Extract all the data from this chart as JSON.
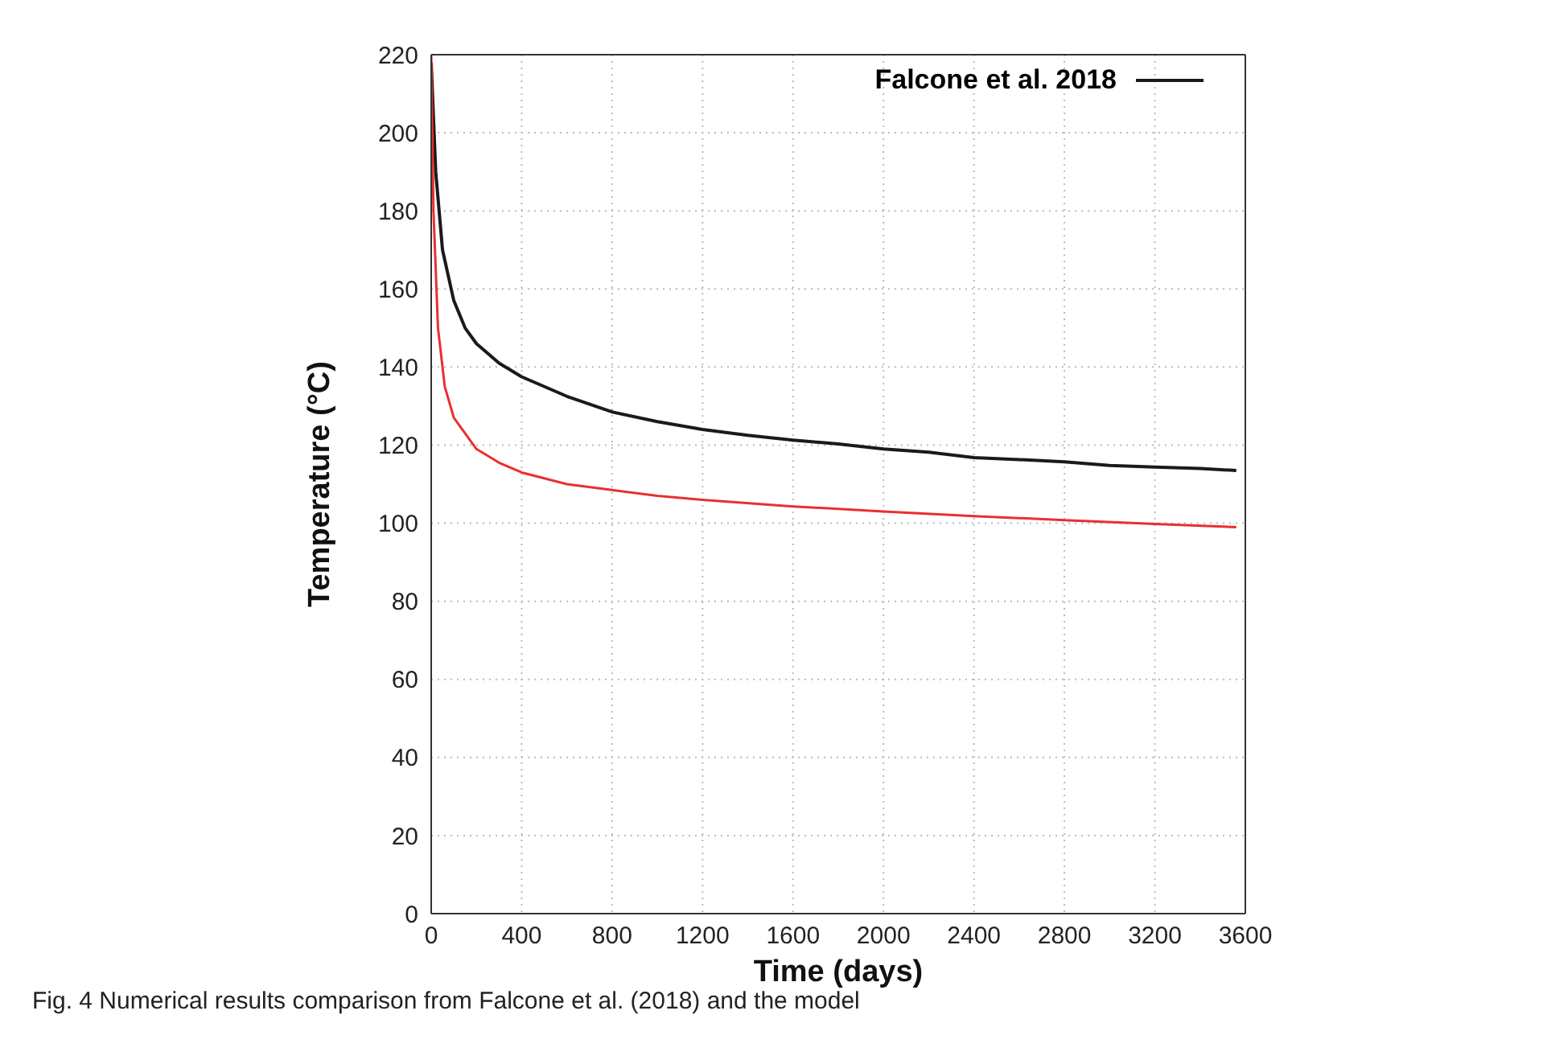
{
  "chart_data": {
    "type": "line",
    "xlabel": "Time (days)",
    "ylabel": "Temperature (°C)",
    "annotations": [
      "Fig. 4 Numerical results comparison from Falcone et al. (2018) and the model"
    ],
    "xlim": [
      0,
      3600
    ],
    "xticks": [
      0,
      400,
      800,
      1200,
      1600,
      2000,
      2400,
      2800,
      3200,
      3600
    ],
    "ylim": [
      0,
      220
    ],
    "yticks": [
      0,
      20,
      40,
      60,
      80,
      100,
      120,
      140,
      160,
      180,
      200,
      220
    ],
    "grid": true,
    "legend": "top right",
    "marker": "none",
    "line_style": "solid",
    "series": [
      {
        "name": "Falcone et al. 2018",
        "color": "#1a1a1a",
        "x": [
          0,
          20,
          50,
          100,
          150,
          200,
          300,
          400,
          600,
          800,
          1000,
          1200,
          1400,
          1600,
          1800,
          2000,
          2200,
          2400,
          2600,
          2800,
          3000,
          3200,
          3400,
          3560
        ],
        "values": [
          218,
          190,
          170,
          157,
          150,
          146,
          141,
          137.5,
          132.5,
          128.5,
          126,
          124,
          122.5,
          121.3,
          120.3,
          119,
          118.2,
          116.8,
          116.3,
          115.7,
          114.8,
          114.4,
          114,
          113.5
        ]
      },
      {
        "color": "#e8302f",
        "x": [
          0,
          10,
          30,
          60,
          100,
          200,
          300,
          400,
          600,
          800,
          1000,
          1200,
          1600,
          2000,
          2400,
          2800,
          3200,
          3560
        ],
        "values": [
          220,
          180,
          150,
          135,
          127,
          119,
          115.5,
          113,
          110,
          108.5,
          107,
          106,
          104.3,
          103,
          101.8,
          100.8,
          99.8,
          99
        ]
      }
    ]
  }
}
